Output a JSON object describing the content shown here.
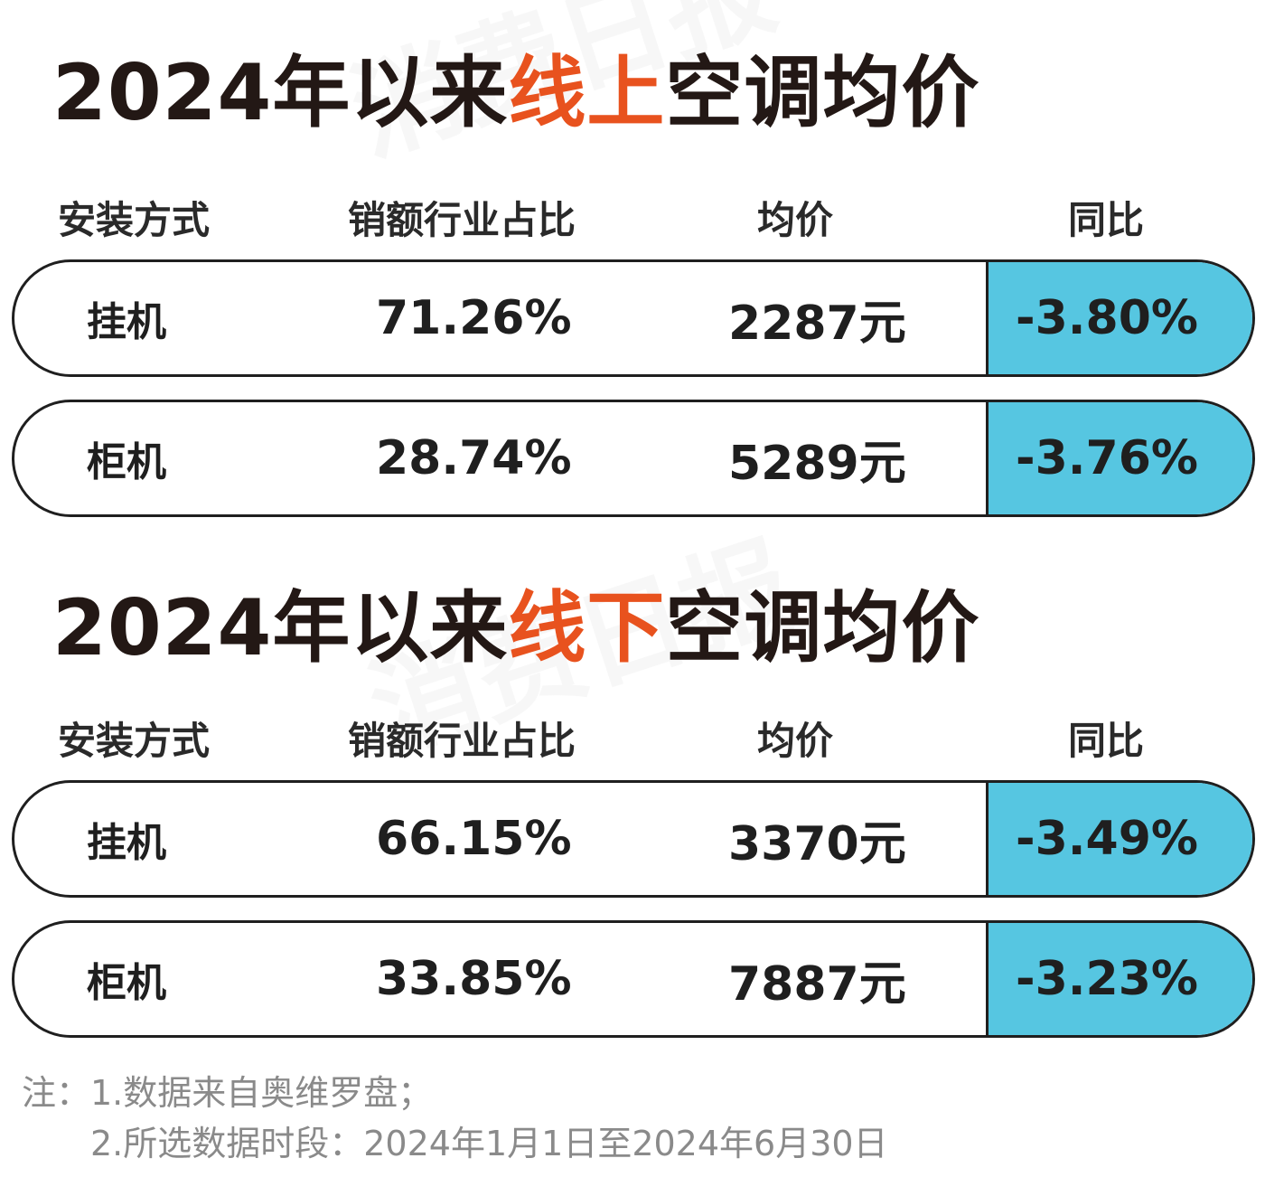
{
  "watermark": "消费日报",
  "sections": [
    {
      "title_pre": "2024年以来",
      "title_accent": "线上",
      "title_post": "空调均价",
      "headers": [
        "安装方式",
        "销额行业占比",
        "均价",
        "同比"
      ],
      "rows": [
        {
          "type": "挂机",
          "share": "71.26%",
          "price": "2287元",
          "yoy": "-3.80%"
        },
        {
          "type": "柜机",
          "share": "28.74%",
          "price": "5289元",
          "yoy": "-3.76%"
        }
      ]
    },
    {
      "title_pre": "2024年以来",
      "title_accent": "线下",
      "title_post": "空调均价",
      "headers": [
        "安装方式",
        "销额行业占比",
        "均价",
        "同比"
      ],
      "rows": [
        {
          "type": "挂机",
          "share": "66.15%",
          "price": "3370元",
          "yoy": "-3.49%"
        },
        {
          "type": "柜机",
          "share": "33.85%",
          "price": "7887元",
          "yoy": "-3.23%"
        }
      ]
    }
  ],
  "notes": [
    "注：1.数据来自奥维罗盘；",
    "2.所选数据时段：2024年1月1日至2024年6月30日"
  ],
  "colors": {
    "accent": "#e8521e",
    "highlight_cell": "#56c6e1",
    "text": "#231815",
    "note": "#8a8a8a"
  }
}
